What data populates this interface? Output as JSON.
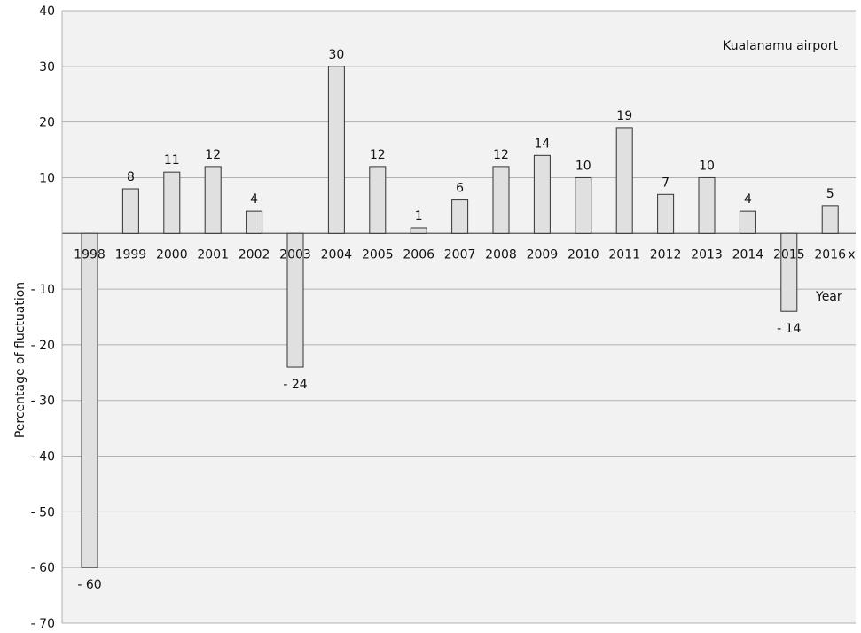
{
  "chart_data": {
    "type": "bar",
    "annotation": "Kualanamu airport",
    "xlabel": "Year",
    "ylabel": "Percentage of fluctuation",
    "x_tick_suffix": "x",
    "categories": [
      "1998",
      "1999",
      "2000",
      "2001",
      "2002",
      "2003",
      "2004",
      "2005",
      "2006",
      "2007",
      "2008",
      "2009",
      "2010",
      "2011",
      "2012",
      "2013",
      "2014",
      "2015",
      "2016"
    ],
    "values": [
      -60,
      8,
      11,
      12,
      4,
      -24,
      30,
      12,
      1,
      6,
      12,
      14,
      10,
      19,
      7,
      10,
      4,
      -14,
      5
    ],
    "value_labels": [
      "-  60",
      "8",
      "11",
      "12",
      "4",
      "-  24",
      "30",
      "12",
      "1",
      "6",
      "12",
      "14",
      "10",
      "19",
      "7",
      "10",
      "4",
      "-  14",
      "5"
    ],
    "ylim": [
      -70,
      40
    ],
    "yticks": [
      40,
      30,
      20,
      10,
      -10,
      -20,
      -30,
      -40,
      -50,
      -60,
      -70
    ],
    "ytick_labels": [
      "40",
      "30",
      "20",
      "10",
      "-  10",
      "-  20",
      "-  30",
      "-  40",
      "-  50",
      "-  60",
      "-  70"
    ],
    "grid": true,
    "colors": {
      "plot_background": "#f2f2f2",
      "bar_fill": "#e0e0e0",
      "bar_stroke": "#333333",
      "grid": "#b0b0b0",
      "axis": "#555555"
    }
  }
}
